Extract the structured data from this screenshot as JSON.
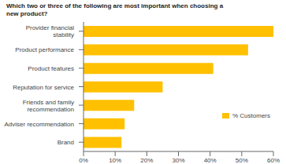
{
  "chart_data": {
    "type": "bar",
    "orientation": "horizontal",
    "title": "Which two or three of the following are most important when choosing a\nnew product?",
    "categories": [
      "Brand",
      "Adviser recommendation",
      "Friends and family\nrecommendation",
      "Reputation for service",
      "Product features",
      "Product performance",
      "Provider financial\nstability"
    ],
    "series": [
      {
        "name": "% Customers",
        "color": "#FFC000",
        "values": [
          12,
          13,
          16,
          25,
          41,
          52,
          60
        ]
      }
    ],
    "xlim": [
      0,
      60
    ],
    "xticks": [
      {
        "value": 0,
        "label": "0%"
      },
      {
        "value": 10,
        "label": "10%"
      },
      {
        "value": 20,
        "label": "20%"
      },
      {
        "value": 30,
        "label": "30%"
      },
      {
        "value": 40,
        "label": "40%"
      },
      {
        "value": 50,
        "label": "50%"
      },
      {
        "value": 60,
        "label": "60%"
      }
    ],
    "legend": "lower right",
    "grid": false
  }
}
